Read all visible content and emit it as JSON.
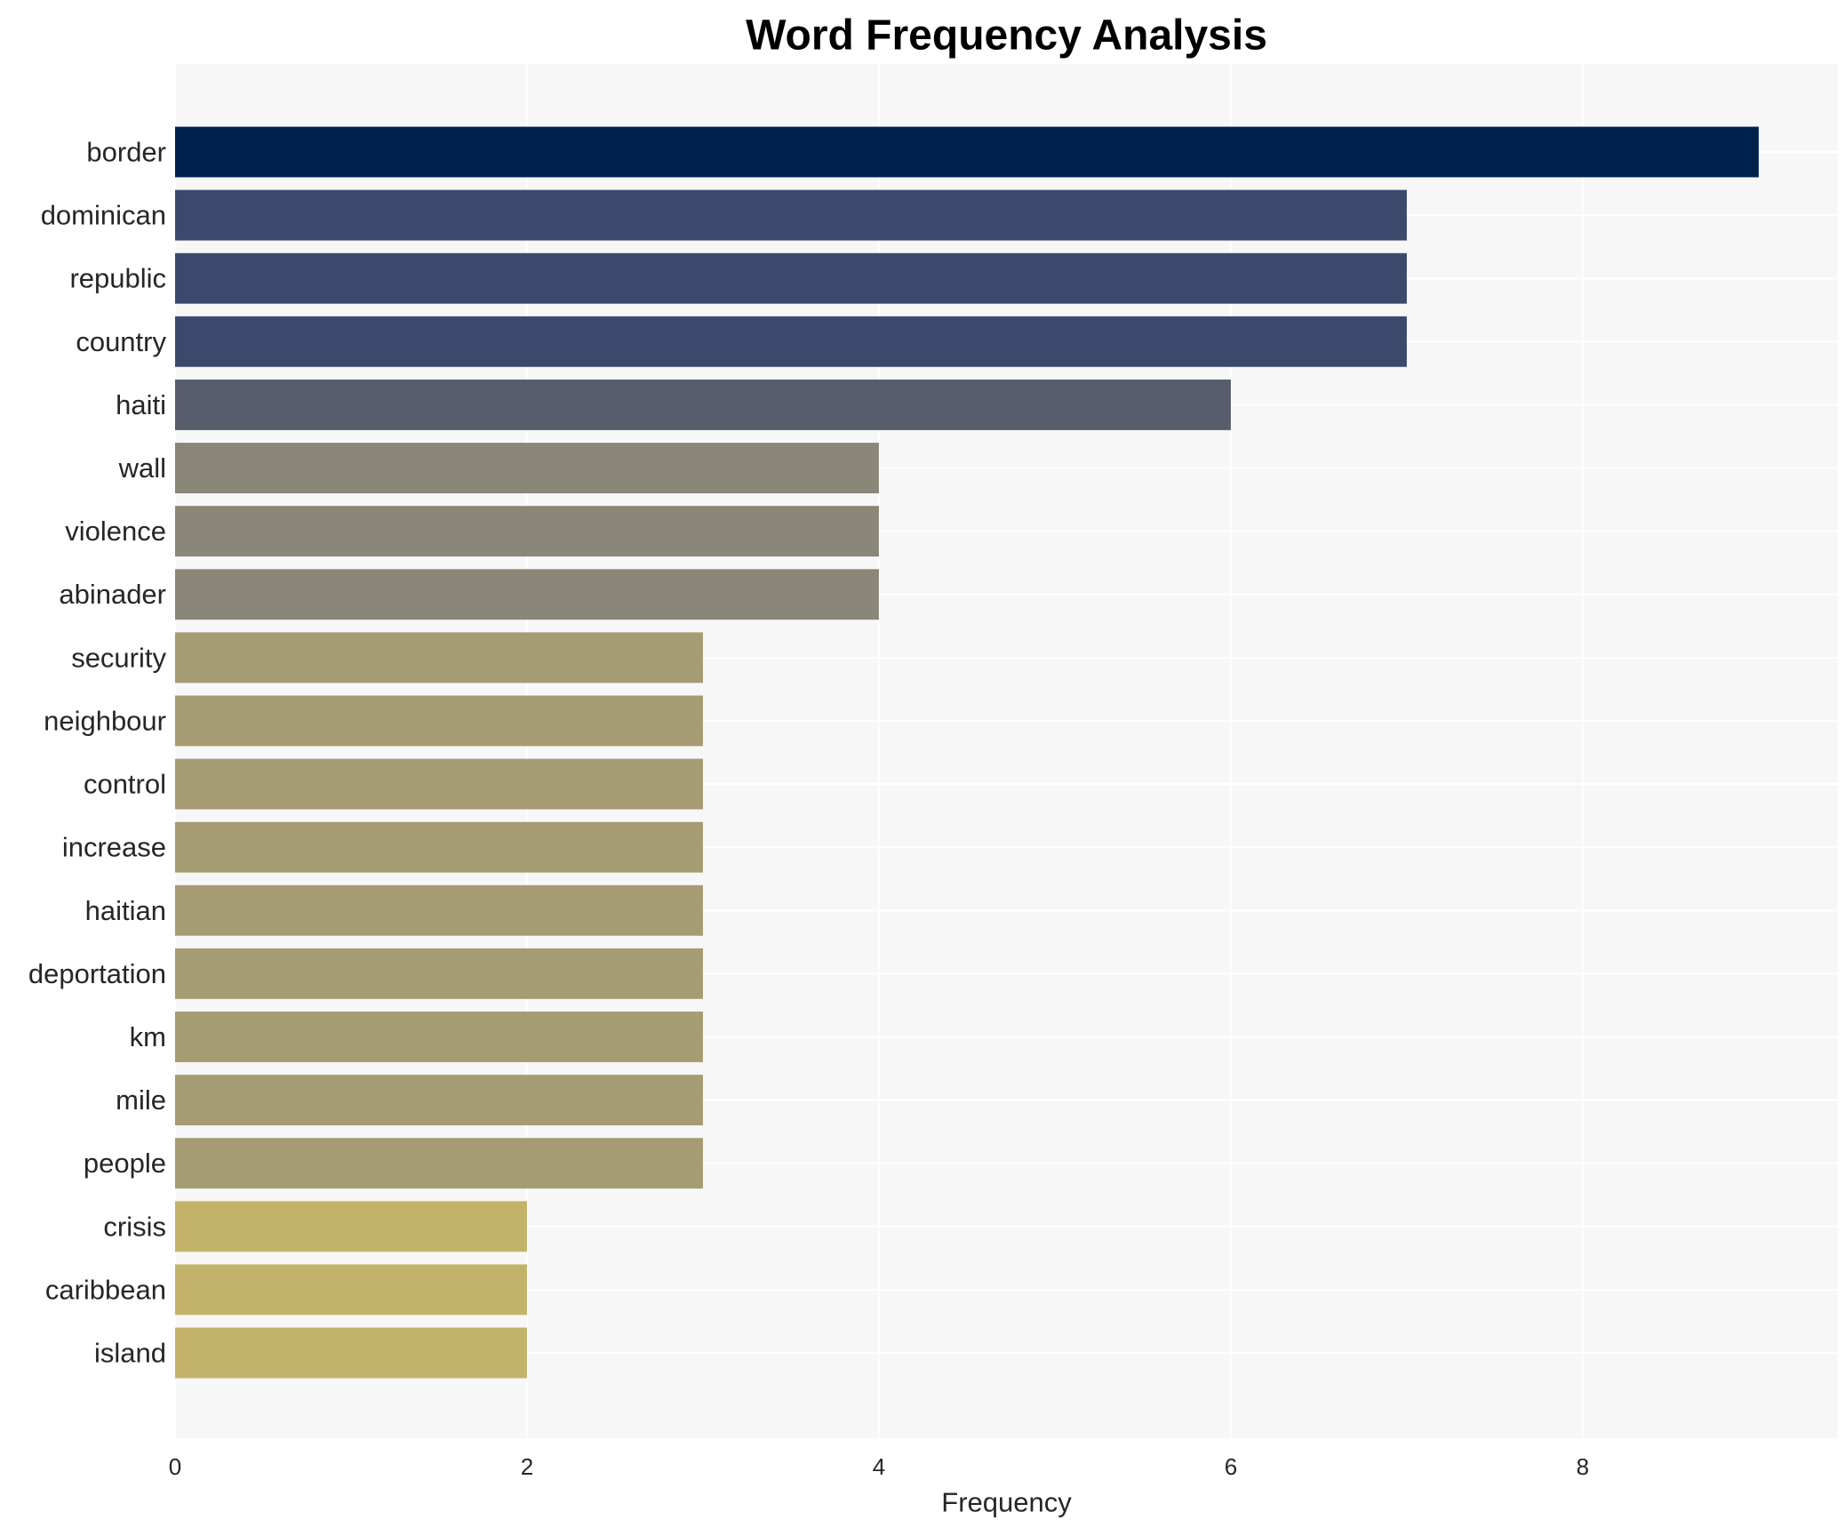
{
  "chart_data": {
    "type": "bar",
    "orientation": "horizontal",
    "title": "Word Frequency Analysis",
    "xlabel": "Frequency",
    "ylabel": "",
    "xlim": [
      0,
      9.45
    ],
    "xticks": [
      0,
      2,
      4,
      6,
      8
    ],
    "grid": true,
    "legend": "none",
    "categories": [
      "border",
      "dominican",
      "republic",
      "country",
      "haiti",
      "wall",
      "violence",
      "abinader",
      "security",
      "neighbour",
      "control",
      "increase",
      "haitian",
      "deportation",
      "km",
      "mile",
      "people",
      "crisis",
      "caribbean",
      "island"
    ],
    "values": [
      9,
      7,
      7,
      7,
      6,
      4,
      4,
      4,
      3,
      3,
      3,
      3,
      3,
      3,
      3,
      3,
      3,
      2,
      2,
      2
    ],
    "colors": {
      "9": "#00224e",
      "7": "#3b496c",
      "6": "#575d6d",
      "4": "#8a8678",
      "3": "#a59c74",
      "2": "#c3b369"
    },
    "plot_background": "#f7f7f7",
    "grid_color": "#ffffff"
  }
}
